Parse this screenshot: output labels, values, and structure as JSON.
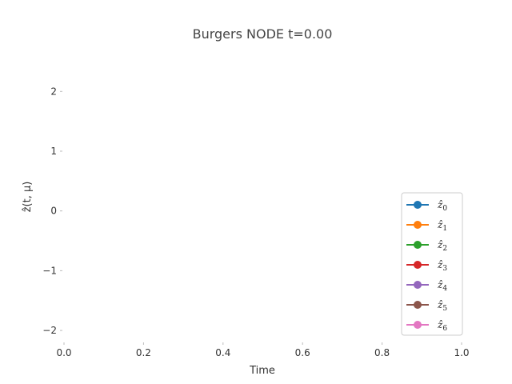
{
  "chart_data": {
    "type": "line",
    "title": "Burgers NODE t=0.00",
    "xlabel": "Time",
    "ylabel": "ẑ(t, μ)",
    "xlim": [
      0,
      1
    ],
    "ylim": [
      -2.2,
      2.7
    ],
    "xticks": [
      "0.0",
      "0.2",
      "0.4",
      "0.6",
      "0.8",
      "1.0"
    ],
    "yticks": [
      "2",
      "1",
      "0",
      "−1",
      "−2"
    ],
    "grid": false,
    "legend_position": "lower-right",
    "series": [
      {
        "name": "ẑ",
        "sub": "0",
        "color": "#1f77b4",
        "x": [],
        "values": []
      },
      {
        "name": "ẑ",
        "sub": "1",
        "color": "#ff7f0e",
        "x": [],
        "values": []
      },
      {
        "name": "ẑ",
        "sub": "2",
        "color": "#2ca02c",
        "x": [],
        "values": []
      },
      {
        "name": "ẑ",
        "sub": "3",
        "color": "#d62728",
        "x": [],
        "values": []
      },
      {
        "name": "ẑ",
        "sub": "4",
        "color": "#9467bd",
        "x": [],
        "values": []
      },
      {
        "name": "ẑ",
        "sub": "5",
        "color": "#8c564b",
        "x": [],
        "values": []
      },
      {
        "name": "ẑ",
        "sub": "6",
        "color": "#e377c2",
        "x": [],
        "values": []
      }
    ]
  }
}
